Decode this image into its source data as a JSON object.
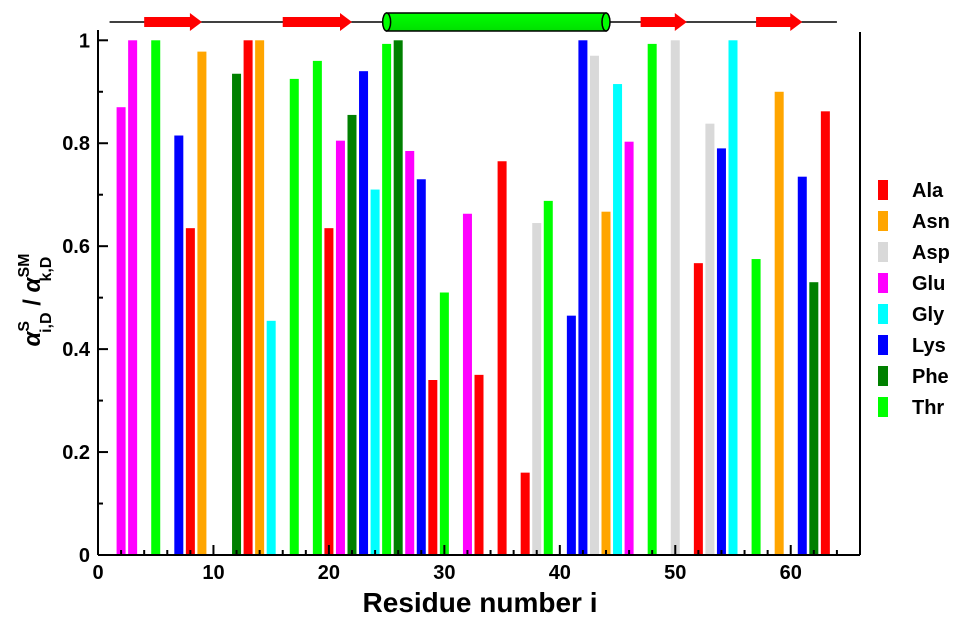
{
  "chart_data": {
    "type": "bar",
    "xlabel": "Residue number i",
    "ylabel": {
      "num_symbol": "α",
      "num_sup": "S",
      "num_sub": "i,D",
      "sep": " / ",
      "den_symbol": "α",
      "den_sup": "SM",
      "den_sub": "k,D"
    },
    "xlim": [
      0,
      66
    ],
    "ylim": [
      0,
      1.02
    ],
    "xticks": [
      0,
      10,
      20,
      30,
      40,
      50,
      60
    ],
    "yticks": [
      0,
      0.2,
      0.4,
      0.6,
      0.8,
      1
    ],
    "xtick_labels": [
      "0",
      "10",
      "20",
      "30",
      "40",
      "50",
      "60"
    ],
    "ytick_labels": [
      "0",
      "0.2",
      "0.4",
      "0.6",
      "0.8",
      "1"
    ],
    "grid": false,
    "legend_position": "right",
    "colors": {
      "Ala": "#ff0000",
      "Asn": "#ffa500",
      "Asp": "#d9d9d9",
      "Glu": "#ff00ff",
      "Gly": "#00ffff",
      "Lys": "#0000ff",
      "Phe": "#008000",
      "Thr": "#00ff00"
    },
    "legend": [
      "Ala",
      "Asn",
      "Asp",
      "Glu",
      "Gly",
      "Lys",
      "Phe",
      "Thr"
    ],
    "bars": [
      {
        "x": 2,
        "residue": "Glu",
        "value": 0.87
      },
      {
        "x": 3,
        "residue": "Glu",
        "value": 1.0
      },
      {
        "x": 5,
        "residue": "Thr",
        "value": 1.0
      },
      {
        "x": 7,
        "residue": "Lys",
        "value": 0.815
      },
      {
        "x": 8,
        "residue": "Ala",
        "value": 0.635
      },
      {
        "x": 9,
        "residue": "Asn",
        "value": 0.978
      },
      {
        "x": 12,
        "residue": "Phe",
        "value": 0.935
      },
      {
        "x": 13,
        "residue": "Ala",
        "value": 1.0
      },
      {
        "x": 14,
        "residue": "Asn",
        "value": 1.0
      },
      {
        "x": 15,
        "residue": "Gly",
        "value": 0.455
      },
      {
        "x": 17,
        "residue": "Thr",
        "value": 0.925
      },
      {
        "x": 19,
        "residue": "Thr",
        "value": 0.96
      },
      {
        "x": 20,
        "residue": "Ala",
        "value": 0.635
      },
      {
        "x": 21,
        "residue": "Glu",
        "value": 0.805
      },
      {
        "x": 22,
        "residue": "Phe",
        "value": 0.855
      },
      {
        "x": 23,
        "residue": "Lys",
        "value": 0.94
      },
      {
        "x": 24,
        "residue": "Gly",
        "value": 0.71
      },
      {
        "x": 25,
        "residue": "Thr",
        "value": 0.993
      },
      {
        "x": 26,
        "residue": "Phe",
        "value": 1.0
      },
      {
        "x": 27,
        "residue": "Glu",
        "value": 0.785
      },
      {
        "x": 28,
        "residue": "Lys",
        "value": 0.73
      },
      {
        "x": 29,
        "residue": "Ala",
        "value": 0.34
      },
      {
        "x": 30,
        "residue": "Thr",
        "value": 0.51
      },
      {
        "x": 32,
        "residue": "Glu",
        "value": 0.663
      },
      {
        "x": 33,
        "residue": "Ala",
        "value": 0.35
      },
      {
        "x": 35,
        "residue": "Ala",
        "value": 0.765
      },
      {
        "x": 37,
        "residue": "Ala",
        "value": 0.16
      },
      {
        "x": 38,
        "residue": "Asp",
        "value": 0.645
      },
      {
        "x": 39,
        "residue": "Thr",
        "value": 0.688
      },
      {
        "x": 41,
        "residue": "Lys",
        "value": 0.465
      },
      {
        "x": 42,
        "residue": "Lys",
        "value": 1.0
      },
      {
        "x": 43,
        "residue": "Asp",
        "value": 0.97
      },
      {
        "x": 44,
        "residue": "Asn",
        "value": 0.667
      },
      {
        "x": 45,
        "residue": "Gly",
        "value": 0.915
      },
      {
        "x": 46,
        "residue": "Glu",
        "value": 0.803
      },
      {
        "x": 48,
        "residue": "Thr",
        "value": 0.993
      },
      {
        "x": 50,
        "residue": "Asp",
        "value": 1.0
      },
      {
        "x": 52,
        "residue": "Ala",
        "value": 0.567
      },
      {
        "x": 53,
        "residue": "Asp",
        "value": 0.838
      },
      {
        "x": 54,
        "residue": "Lys",
        "value": 0.79
      },
      {
        "x": 55,
        "residue": "Gly",
        "value": 1.0
      },
      {
        "x": 57,
        "residue": "Thr",
        "value": 0.575
      },
      {
        "x": 59,
        "residue": "Asn",
        "value": 0.9
      },
      {
        "x": 61,
        "residue": "Lys",
        "value": 0.735
      },
      {
        "x": 62,
        "residue": "Phe",
        "value": 0.53
      },
      {
        "x": 63,
        "residue": "Ala",
        "value": 0.862
      }
    ],
    "secondary_structure": {
      "range": [
        1,
        64
      ],
      "strands": [
        [
          4,
          9
        ],
        [
          16,
          22
        ],
        [
          47,
          51
        ],
        [
          57,
          61
        ]
      ],
      "helix": [
        25,
        44
      ],
      "strand_color": "#ff0000",
      "helix_color": "#00ff00"
    }
  }
}
